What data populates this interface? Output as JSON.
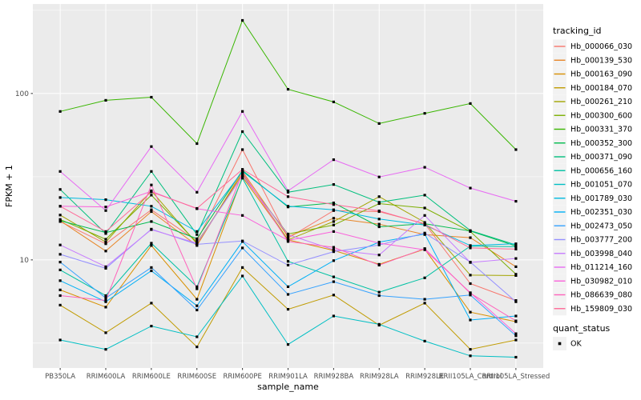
{
  "chart_data": {
    "type": "line",
    "title": "",
    "xlabel": "sample_name",
    "ylabel": "FPKM + 1",
    "yscale": "log10",
    "ylim": [
      2.24,
      345
    ],
    "yticks": [
      10,
      100
    ],
    "ytick_labels": [
      "10",
      "100"
    ],
    "minor_gridlines": [
      3.162,
      31.62,
      316.2
    ],
    "grid": "on",
    "legend_position": "right",
    "categories": [
      "PB350LA",
      "RRIM600LA",
      "RRIM600LE",
      "RRIM600SE",
      "RRIM600PE",
      "RRIM901LA",
      "RRIM928BA",
      "RRIM928LA",
      "RRIM928LE",
      "RRII105LA_Control",
      "RRII105LA_Stressed"
    ],
    "series": [
      {
        "name": "Hb_000066_030",
        "color": "#F8766D",
        "values": [
          17,
          12.5,
          20,
          13,
          46,
          13.5,
          19.8,
          19.5,
          16.5,
          7.2,
          5.7
        ]
      },
      {
        "name": "Hb_000139_530",
        "color": "#E88526",
        "values": [
          17.2,
          11.3,
          19.5,
          12.2,
          34,
          13.8,
          17.8,
          16.4,
          14.2,
          13.6,
          9.1
        ]
      },
      {
        "name": "Hb_000163_090",
        "color": "#D89000",
        "values": [
          6.6,
          5.2,
          12.2,
          5.8,
          31.5,
          13.2,
          11.4,
          9.4,
          11.6,
          4.85,
          4.25
        ]
      },
      {
        "name": "Hb_000184_070",
        "color": "#C09B00",
        "values": [
          5.35,
          3.65,
          5.5,
          3.0,
          9.0,
          5.05,
          6.15,
          4.05,
          5.5,
          2.9,
          3.3
        ]
      },
      {
        "name": "Hb_000261_210",
        "color": "#A3A500",
        "values": [
          18.6,
          12.8,
          26,
          12.5,
          33,
          13.2,
          17,
          24,
          16.8,
          8.1,
          8.05
        ]
      },
      {
        "name": "Hb_000300_600",
        "color": "#7CAE00",
        "values": [
          17.5,
          13.3,
          24.5,
          12.7,
          32,
          14.3,
          16.2,
          21.8,
          20.5,
          14.8,
          8.2
        ]
      },
      {
        "name": "Hb_000331_370",
        "color": "#39B600",
        "values": [
          78,
          91,
          95,
          50,
          275,
          106,
          89,
          66,
          76,
          87,
          46
        ]
      },
      {
        "name": "Hb_000352_300",
        "color": "#00BB4E",
        "values": [
          17.2,
          14.6,
          17,
          13.4,
          34.5,
          20.8,
          22,
          15.8,
          16.5,
          14.9,
          12.1
        ]
      },
      {
        "name": "Hb_000371_090",
        "color": "#00BF7D",
        "values": [
          26.5,
          14.4,
          34,
          14.2,
          59,
          25.5,
          28.4,
          22.2,
          24.5,
          15,
          12.3
        ]
      },
      {
        "name": "Hb_000656_160",
        "color": "#00C1A3",
        "values": [
          8.7,
          6.1,
          12.6,
          6.9,
          31,
          9.8,
          7.9,
          6.4,
          7.8,
          12.1,
          12.0
        ]
      },
      {
        "name": "Hb_001051_070",
        "color": "#00BFC4",
        "values": [
          3.3,
          2.9,
          4.0,
          3.45,
          8.0,
          3.1,
          4.6,
          4.1,
          3.25,
          2.65,
          2.6
        ]
      },
      {
        "name": "Hb_001789_030",
        "color": "#00BAE0",
        "values": [
          23.7,
          23,
          21,
          14.8,
          34,
          21,
          20,
          17.6,
          16.2,
          12.2,
          12.5
        ]
      },
      {
        "name": "Hb_002351_030",
        "color": "#00B0F6",
        "values": [
          7.5,
          5.6,
          8.6,
          5.3,
          12.9,
          6.9,
          9.9,
          12.8,
          14.3,
          4.35,
          4.6
        ]
      },
      {
        "name": "Hb_002473_050",
        "color": "#35A2FF",
        "values": [
          9.7,
          5.9,
          9.0,
          5.0,
          11.8,
          6.2,
          7.4,
          6.1,
          5.8,
          6.15,
          3.5
        ]
      },
      {
        "name": "Hb_003777_200",
        "color": "#9590FF",
        "values": [
          10.8,
          8.9,
          15.3,
          12.4,
          13,
          9.3,
          11.2,
          12.3,
          14.5,
          9.7,
          5.6
        ]
      },
      {
        "name": "Hb_003998_040",
        "color": "#C77CFF",
        "values": [
          12.3,
          9.1,
          15.2,
          12.6,
          32,
          14.2,
          11.5,
          10.7,
          18.5,
          9.65,
          10.2
        ]
      },
      {
        "name": "Hb_011214_160",
        "color": "#E76BF3",
        "values": [
          34,
          19.8,
          48,
          25.5,
          78,
          26,
          40,
          31.5,
          36,
          27,
          22.5
        ]
      },
      {
        "name": "Hb_030982_010",
        "color": "#FA62DB",
        "values": [
          21,
          20.8,
          25.8,
          20.3,
          18.5,
          13.1,
          14.8,
          12.6,
          11.5,
          6.35,
          3.6
        ]
      },
      {
        "name": "Hb_086639_080",
        "color": "#FF62BC",
        "values": [
          6.1,
          5.7,
          28.2,
          6.7,
          33.5,
          12.9,
          11.9,
          9.3,
          11.7,
          6.3,
          4.3
        ]
      },
      {
        "name": "Hb_159809_030",
        "color": "#FF6A98",
        "values": [
          21,
          14.8,
          25.6,
          20.4,
          35,
          24,
          21.5,
          19.7,
          16.4,
          11.8,
          11.6
        ]
      }
    ],
    "legend": {
      "color_title": "tracking_id",
      "shape_title": "quant_status",
      "shape_entries": [
        {
          "label": "OK",
          "shape": "filled-square",
          "color": "#000000"
        }
      ]
    },
    "point_style": {
      "shape": "square",
      "color": "#000000",
      "size": 3.2
    },
    "theme": {
      "panel_bg": "#EBEBEB",
      "grid_color": "#FFFFFF",
      "tick_label_color": "#4D4D4D",
      "axis_title_color": "#000000",
      "legend_key_bg": "#F2F2F2",
      "tick_color": "#333333"
    }
  }
}
